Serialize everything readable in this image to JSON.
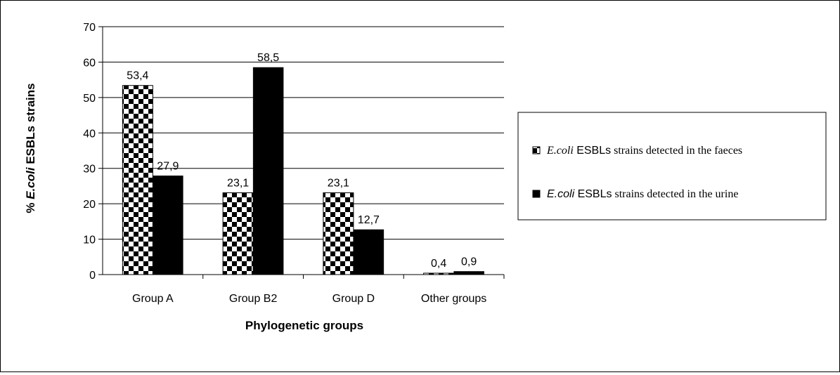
{
  "chart_data": {
    "type": "bar",
    "categories": [
      "Group A",
      "Group B2",
      "Group D",
      "Other groups"
    ],
    "series": [
      {
        "name": "E.coli ESBLs strains detected in the faeces",
        "name_italic": "E.coli",
        "name_rest": " ESBLs strains detected in the faeces",
        "values": [
          53.4,
          23.1,
          23.1,
          0.4
        ],
        "labels": [
          "53,4",
          "23,1",
          "23,1",
          "0,4"
        ],
        "pattern": "checkerboard"
      },
      {
        "name": "E.coli ESBLs strains detected in the urine",
        "name_italic": "E.coli",
        "name_rest": " ESBLs strains detected in the urine",
        "values": [
          27.9,
          58.5,
          12.7,
          0.9
        ],
        "labels": [
          "27,9",
          "58,5",
          "12,7",
          "0,9"
        ],
        "color": "#000000"
      }
    ],
    "xlabel": "Phylogenetic groups",
    "ylabel_prefix": "% ",
    "ylabel_italic": "E.coli",
    "ylabel_rest": " ESBLs strains",
    "ylim": [
      0,
      70
    ],
    "yticks": [
      0,
      10,
      20,
      30,
      40,
      50,
      60,
      70
    ],
    "grid": true,
    "legend_position": "right"
  }
}
